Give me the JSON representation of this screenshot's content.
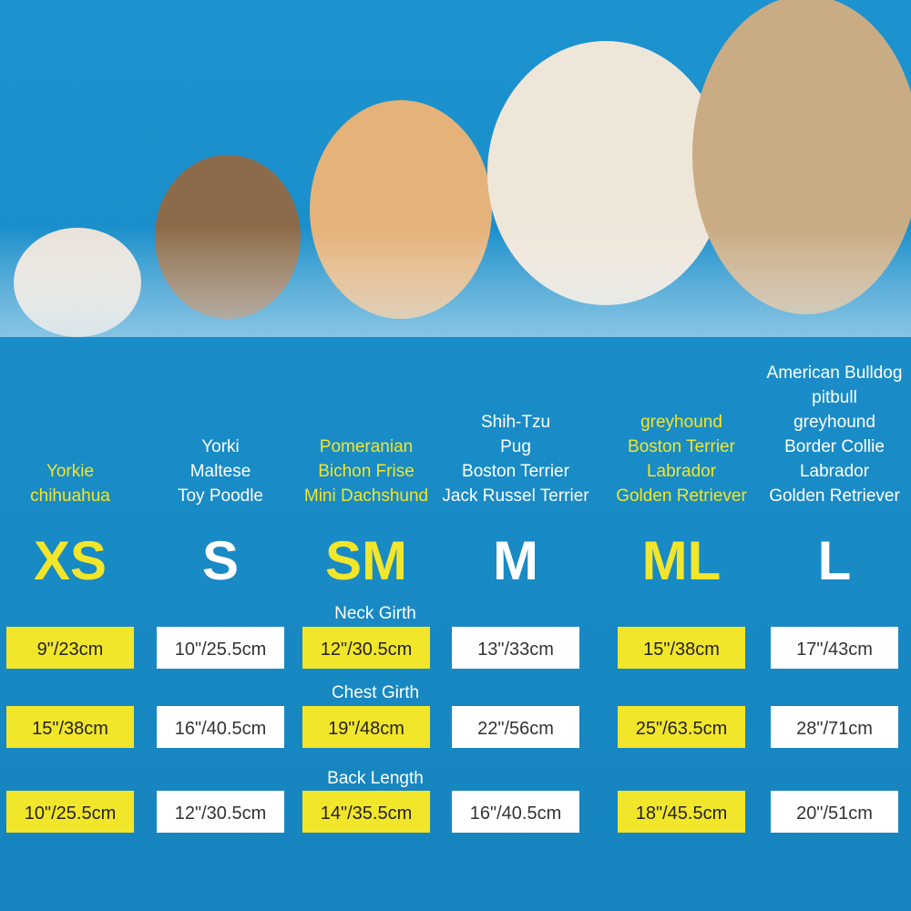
{
  "sizes": [
    {
      "label": "XS",
      "breeds": [
        "Yorkie",
        "chihuahua"
      ],
      "color": "#f2e62a"
    },
    {
      "label": "S",
      "breeds": [
        "Yorki",
        "Maltese",
        "Toy Poodle"
      ],
      "color": "#ffffff"
    },
    {
      "label": "SM",
      "breeds": [
        "Pomeranian",
        "Bichon Frise",
        "Mini Dachshund"
      ],
      "color": "#f2e62a"
    },
    {
      "label": "M",
      "breeds": [
        "Shih-Tzu",
        "Pug",
        "Boston Terrier",
        "Jack Russel Terrier"
      ],
      "color": "#ffffff"
    },
    {
      "label": "ML",
      "breeds": [
        "greyhound",
        "Boston Terrier",
        "Labrador",
        "Golden Retriever"
      ],
      "color": "#f2e62a"
    },
    {
      "label": "L",
      "breeds": [
        "American Bulldog",
        "pitbull",
        "greyhound",
        "Border Collie",
        "Labrador",
        "Golden Retriever"
      ],
      "color": "#ffffff"
    }
  ],
  "measurements": [
    {
      "name": "Neck Girth",
      "values": [
        "9\"/23cm",
        "10\"/25.5cm",
        "12\"/30.5cm",
        "13\"/33cm",
        "15\"/38cm",
        "17\"/43cm"
      ]
    },
    {
      "name": "Chest Girth",
      "values": [
        "15\"/38cm",
        "16\"/40.5cm",
        "19\"/48cm",
        "22\"/56cm",
        "25\"/63.5cm",
        "28\"/71cm"
      ]
    },
    {
      "name": "Back Length",
      "values": [
        "10\"/25.5cm",
        "12\"/30.5cm",
        "14\"/35.5cm",
        "16\"/40.5cm",
        "18\"/45.5cm",
        "20\"/51cm"
      ]
    }
  ]
}
